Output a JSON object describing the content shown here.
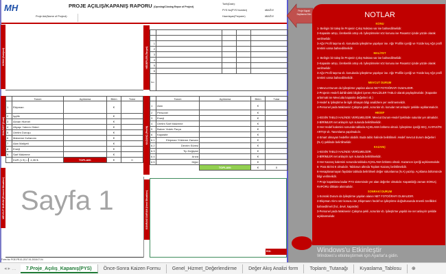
{
  "header": {
    "logo": "MH",
    "title": "PROJE AÇILIŞ/KAPANIŞ RAPORU",
    "title_sub": "(Opening/Closing Repor of Project)",
    "project_name_label": "Proje Adı(Name of Project) :",
    "date_label": "Tarih(Date):",
    "pys_label": "PYS No(PYS Number)",
    "pys_value": "#BAĞV!",
    "preparer_label": "Hazırlayan(Preparer)",
    "preparer_value": "#BAĞV!"
  },
  "sections": {
    "konu": "KONU (Subject)",
    "hedefler": "HEDEFLER (Target)",
    "maliyet": "MALİYET (Cost)",
    "kazanc": "KAZANÇ (Profit)",
    "mevcut": "MEVCUT DURUM (Present Situation)",
    "sonraki": "SONRAKİ DURUM (Next Situation)"
  },
  "targets": {
    "rows": [
      "1",
      "2",
      "3",
      "4",
      "5",
      "6"
    ],
    "note_label": "Not"
  },
  "cost": {
    "headers": [
      "Tanım",
      "Açıklama",
      "Birim",
      "Tutar"
    ],
    "rows": [
      {
        "n": "1",
        "t": "Ekipman",
        "u": "€"
      },
      {
        "n": "2",
        "t": "İşçilik",
        "u": "€"
      },
      {
        "n": "3",
        "t": "Alınan Hizmet",
        "u": "€"
      },
      {
        "n": "4",
        "t": "Altyapı Yatırım Gideri",
        "u": "€"
      },
      {
        "n": "5",
        "t": "Üretim Duruşu",
        "u": "€"
      },
      {
        "n": "6",
        "t": "Malzeme Kullanımı",
        "u": "€"
      },
      {
        "n": "7",
        "t": "Alan Maliyeti",
        "u": "€"
      },
      {
        "n": "8",
        "t": "Enerji",
        "u": "€"
      },
      {
        "n": "9",
        "t": "Sarf Malzeme",
        "u": "€"
      }
    ],
    "rate_label": "KUR (1 €) =",
    "rate_value": "4,35 ₺",
    "total_label": "TOPLAM:",
    "total_unit": "€",
    "total_value": "0"
  },
  "profit": {
    "headers": [
      "Tanım",
      "Açıklama",
      "Birim",
      "Tutar"
    ],
    "rows": [
      {
        "n": "1",
        "t": "Alan",
        "u": "€"
      },
      {
        "n": "2",
        "t": "Personel",
        "u": "€"
      },
      {
        "n": "3",
        "t": "Enerji",
        "u": "€"
      },
      {
        "n": "4",
        "t": "Üretim Sarf Malzeme",
        "u": "€"
      },
      {
        "n": "5",
        "t": "Bakım Yedek Parça",
        "u": "€"
      },
      {
        "n": "6",
        "t": "Kapasite",
        "u": "€"
      },
      {
        "n": "6.1",
        "t": "Ekipman Yükleme Zamanı",
        "u": "€"
      },
      {
        "n": "6.2",
        "t": "Devrim Süresi",
        "u": "€"
      },
      {
        "n": "6.3",
        "t": "Tip Değişimi",
        "u": "€"
      },
      {
        "n": "6.4",
        "t": "Arıza",
        "u": "€"
      },
      {
        "n": "6.5",
        "t": "Diğer",
        "u": "€"
      }
    ],
    "total_label": "TOPLAM:",
    "total_unit": "€",
    "total_value": "0"
  },
  "roi_label": "ROI:",
  "watermark": "Sayfa 1",
  "form_no": "Form No: PGE-FR-01-2017.01-2018.07-04",
  "back_button": "Proje Kapak Sayfasına Dön",
  "notes": {
    "title": "NOTLAR",
    "sections": [
      {
        "title": "KONU",
        "lines": [
          "1- Belirgin bir talep ile Projenin Çıkış Noktası var ise bahsedilmelidir.",
          "2-Kapasite artışı, Üretkenlik artışı vb. İyileştirmeler söz konusu ise Pasantız içinde yüzde olarak verilmelidir.",
          "3-Ağır Profil taşıma vb. konularda iyileştirme yapılıyor ise. Ağır Profilin içeriği ve Yüzde kaç Ağır profil üretimi varsa bahsedilmelidir."
        ]
      },
      {
        "title": "MALİYET",
        "lines": [
          "1- Belirgin bir talep ile Projenin Çıkış Noktası var ise bahsedilmelidir.",
          "2-Kapasite artışı, Üretkenlik artışı vb. İyileştirmeler söz konusu ise Pasantız içinde yüzde olarak verilmelidir.",
          "3-Ağır Profil taşıma vb. konularda iyileştirme yapılıyor ise. Ağır Profilin içeriği ve Yüzde kaç Ağır profil üretimi varsa bahsedilmelidir."
        ]
      },
      {
        "title": "MEVCUT DURUM",
        "lines": [
          "1-Mevcut Durum da İyileştirme yapılan alanın NET FOTOĞRAFI OLMALIDIR.",
          "2-Projenin Hedefi dahilindeki bilgileri içeren ANALİZLER TABLO olarak paylaşılmalıdır. (Kapasite arttırmak ise Mevcutta kapasite değerleri vb.)",
          "3-Hedef & İyileştirme ile ilgili olmayan bilgi analizlere yer verilmemelidir.",
          "4-Personel yada Makinenin Çalışma şekli ,sorunlar vb. konular net anlaşılır şekilde açıklanmalıdır."
        ]
      },
      {
        "title": "HEDEF",
        "lines": [
          "1-KESİN TABLO HALİNDE VERİLMELİDİR. Mevcut Durum-Hedef Şeklinde sutunlar yer almalıdır.",
          "2-BİRİMLER net anlaşılır ayrı sutunda belirtilmelidir.",
          "3-Her Hedef kalemini sonunda tabloda AÇIKLAMA bölümü olmalı. İyileştirme içeriği SEÇ, KAPASİTE ARTIŞI vb. Tanımlama yapılmalıdır.",
          "4-Smart olmayan hedefler olabilir. Buda tablo halinde belirtilmeli .Hedef mevcut durum değerleri (N.A) şeklinde belirtilmelidir."
        ]
      },
      {
        "title": "KAZANÇ",
        "lines": [
          "1-KESİN TABLO HALİNDE VERİLMELİDİR.",
          "2-BİRİMLER net anlaşılır ayrı sutunda belirtilmelidir.",
          "3-Her Kazanç kalemini sonunda tabloda AÇIKLAMA bölümü olmalı. Kazancın içeriği açıklanmalıdır.",
          "5- Para Birimi € olmalıdır. Tablonun altında Toplam Kazanç belirtilmelidir.",
          "6-Hesaplanamayan faydalar tabloda belirtilmeli değer sütunlarına (N.A) yazılıp. Açıklama bölümünde bilgi verilmelidir.",
          "7-Proje kapatılana kadar PYS sisteminde yer alan değerler olmalıdır. Kapatıldığı zaman SONUÇ RAPORU dikkate alınmalıdır."
        ]
      },
      {
        "title": "SONRAKİ DURUM",
        "lines": [
          "1-Sonraki Durum da İyileştirme yapılan alanın NET FOTOĞRAFI OLMALIDIR.",
          "2-Ekipman Alımı söz konusu ise ,Ekipmanın hedef ve iyileştirme doğrultusunda önemli özellikleri bahsedilmeli (hız, devir, kapasite)",
          "3-Personel yada Makinenin Çalışma şekli ,sorunlar vb. İyileştirme yapıldı ise net anlaşılır şekilde açıklanmalıdır."
        ]
      }
    ]
  },
  "activation": {
    "line1": "Windows'u Etkinleştir",
    "line2": "Windows'u etkinleştirmek için Ayarlar'a gidin."
  },
  "tabs": [
    "7.Proje_Açılış_Kapanış(PYS)",
    "Önce-Sonra Kaizen Formu",
    "Genel_Hizmet_Değerlendirme",
    "Değer Akış Analizi form",
    "Toplantı_Tutanağı",
    "Kıyaslama_Tablosu"
  ],
  "colors": {
    "accent": "#c00000",
    "green": "#92d050",
    "tab_active": "#1e7a35"
  }
}
